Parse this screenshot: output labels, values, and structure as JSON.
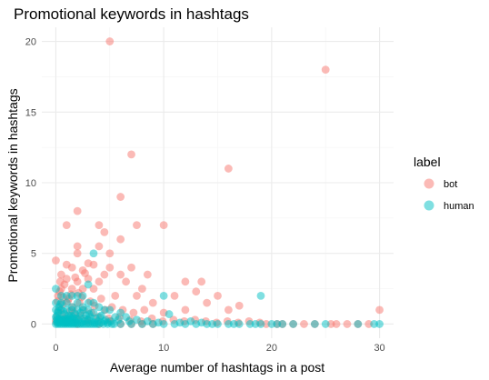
{
  "chart_data": {
    "type": "scatter",
    "title": "Promotional keywords in hashtags",
    "xlabel": "Average number of hashtags in a post",
    "ylabel": "Promotional keywords in hashtags",
    "xlim": [
      -1.3,
      31.3
    ],
    "ylim": [
      -1.0,
      21.0
    ],
    "x_ticks": [
      0,
      10,
      20,
      30
    ],
    "y_ticks": [
      0,
      5,
      10,
      15,
      20
    ],
    "legend": {
      "title": "label",
      "position": "right",
      "entries": [
        {
          "name": "bot",
          "color": "#f8766d"
        },
        {
          "name": "human",
          "color": "#00bfc4"
        }
      ]
    },
    "series": [
      {
        "name": "bot",
        "color": "#f8766d",
        "points": [
          [
            5,
            20
          ],
          [
            25,
            18
          ],
          [
            7,
            12
          ],
          [
            16,
            11
          ],
          [
            6,
            9
          ],
          [
            2,
            8
          ],
          [
            1,
            7
          ],
          [
            4,
            7
          ],
          [
            7.5,
            7
          ],
          [
            10,
            7
          ],
          [
            4.5,
            6.5
          ],
          [
            6,
            6
          ],
          [
            2,
            5.5
          ],
          [
            4,
            5.5
          ],
          [
            2,
            5
          ],
          [
            5,
            5
          ],
          [
            0,
            4.5
          ],
          [
            1,
            4.2
          ],
          [
            3,
            4.3
          ],
          [
            1.5,
            4
          ],
          [
            2.5,
            3.8
          ],
          [
            3.5,
            4.2
          ],
          [
            6,
            3.5
          ],
          [
            8.5,
            3.5
          ],
          [
            0.5,
            3.5
          ],
          [
            1,
            3.2
          ],
          [
            2,
            3
          ],
          [
            3,
            3.2
          ],
          [
            4,
            3
          ],
          [
            5,
            4
          ],
          [
            6.5,
            3
          ],
          [
            7,
            4
          ],
          [
            4.5,
            3.5
          ],
          [
            2.5,
            2.5
          ],
          [
            1.5,
            2.5
          ],
          [
            0.5,
            2.5
          ],
          [
            3.5,
            2.5
          ],
          [
            5.5,
            2
          ],
          [
            0.8,
            2.8
          ],
          [
            12,
            3
          ],
          [
            13.5,
            3
          ],
          [
            13,
            2.3
          ],
          [
            15,
            2
          ],
          [
            11,
            2
          ],
          [
            8,
            2.5
          ],
          [
            7.5,
            2
          ],
          [
            9,
            1.5
          ],
          [
            12,
            1
          ],
          [
            14,
            1.5
          ],
          [
            16,
            1
          ],
          [
            17,
            1.3
          ],
          [
            10,
            0.8
          ],
          [
            0.2,
            2
          ],
          [
            1.2,
            1.8
          ],
          [
            2.2,
            1.5
          ],
          [
            3.2,
            1.6
          ],
          [
            4.2,
            1.8
          ],
          [
            5.2,
            1.2
          ],
          [
            0.6,
            1.4
          ],
          [
            1.6,
            1.2
          ],
          [
            2.6,
            1
          ],
          [
            3.6,
            1.3
          ],
          [
            4.6,
            1
          ],
          [
            0.3,
            1
          ],
          [
            1.3,
            0.9
          ],
          [
            2.3,
            0.6
          ],
          [
            3.3,
            0.8
          ],
          [
            6.2,
            1
          ],
          [
            7.2,
            0.8
          ],
          [
            8.2,
            1
          ],
          [
            0.1,
            0.5
          ],
          [
            0.9,
            0.4
          ],
          [
            1.9,
            0.4
          ],
          [
            2.9,
            0.3
          ],
          [
            3.9,
            0.5
          ],
          [
            4.9,
            0.4
          ],
          [
            5.9,
            0.5
          ],
          [
            6.9,
            0.3
          ],
          [
            7.9,
            0.2
          ],
          [
            8.9,
            0.4
          ],
          [
            9.9,
            0.2
          ],
          [
            10.9,
            0.3
          ],
          [
            11.9,
            0.2
          ],
          [
            12.9,
            0.3
          ],
          [
            13.9,
            0.2
          ],
          [
            14.9,
            0.1
          ],
          [
            15.9,
            0.2
          ],
          [
            16.9,
            0.1
          ],
          [
            17.9,
            0.2
          ],
          [
            18.9,
            0.1
          ],
          [
            21,
            0
          ],
          [
            22,
            0
          ],
          [
            23,
            0
          ],
          [
            24,
            0
          ],
          [
            26,
            0
          ],
          [
            27,
            0
          ],
          [
            28,
            0
          ],
          [
            29,
            0
          ],
          [
            30,
            1
          ],
          [
            19.5,
            0
          ],
          [
            20.5,
            0
          ],
          [
            25.5,
            0
          ],
          [
            0,
            0.2
          ],
          [
            1,
            0.1
          ],
          [
            2,
            0
          ],
          [
            3,
            0.1
          ],
          [
            4,
            0
          ],
          [
            5,
            0.2
          ],
          [
            6,
            0
          ],
          [
            7,
            0
          ],
          [
            8,
            0
          ],
          [
            9,
            0
          ],
          [
            0.4,
            3
          ],
          [
            1.8,
            3.3
          ],
          [
            2.7,
            3.6
          ],
          [
            0.7,
            1.9
          ],
          [
            1.4,
            2.1
          ],
          [
            2.1,
            2.2
          ],
          [
            0.15,
            1.6
          ],
          [
            0.35,
            2.3
          ],
          [
            1.1,
            1.6
          ],
          [
            1.7,
            0.8
          ],
          [
            0.55,
            0.7
          ],
          [
            2.4,
            1.9
          ]
        ]
      },
      {
        "name": "human",
        "color": "#00bfc4",
        "points": [
          [
            3.5,
            5
          ],
          [
            10,
            2
          ],
          [
            19,
            2
          ],
          [
            0,
            2.5
          ],
          [
            0.5,
            2
          ],
          [
            1,
            2
          ],
          [
            1.5,
            2
          ],
          [
            2,
            2
          ],
          [
            3,
            2.8
          ],
          [
            2.5,
            2
          ],
          [
            0,
            1.5
          ],
          [
            0.5,
            1.5
          ],
          [
            1,
            1.5
          ],
          [
            2,
            1.5
          ],
          [
            3,
            1.5
          ],
          [
            1.5,
            1.2
          ],
          [
            2.5,
            1.2
          ],
          [
            3.5,
            1.5
          ],
          [
            4,
            1.2
          ],
          [
            4.5,
            1
          ],
          [
            0,
            1
          ],
          [
            0.5,
            1
          ],
          [
            1,
            1
          ],
          [
            1.5,
            1
          ],
          [
            2,
            1
          ],
          [
            2.5,
            1
          ],
          [
            3,
            1
          ],
          [
            3.5,
            0.8
          ],
          [
            5,
            1
          ],
          [
            6,
            0.8
          ],
          [
            0.2,
            0.8
          ],
          [
            0.8,
            0.7
          ],
          [
            1.2,
            0.6
          ],
          [
            1.8,
            0.7
          ],
          [
            2.2,
            0.5
          ],
          [
            2.8,
            0.6
          ],
          [
            3.2,
            0.5
          ],
          [
            4.2,
            0.6
          ],
          [
            5.5,
            0.5
          ],
          [
            6.5,
            0.5
          ],
          [
            7.5,
            0.3
          ],
          [
            8.5,
            0.2
          ],
          [
            10.5,
            0.7
          ],
          [
            0,
            0.5
          ],
          [
            0.3,
            0.4
          ],
          [
            0.6,
            0.3
          ],
          [
            0.9,
            0.2
          ],
          [
            1.2,
            0.3
          ],
          [
            1.5,
            0.4
          ],
          [
            1.8,
            0.2
          ],
          [
            2.1,
            0.3
          ],
          [
            2.4,
            0.1
          ],
          [
            2.7,
            0.2
          ],
          [
            3,
            0.3
          ],
          [
            3.3,
            0.2
          ],
          [
            3.6,
            0.1
          ],
          [
            3.9,
            0.2
          ],
          [
            4.2,
            0.1
          ],
          [
            4.5,
            0.2
          ],
          [
            4.8,
            0.1
          ],
          [
            5.1,
            0.2
          ],
          [
            5.4,
            0
          ],
          [
            6,
            0
          ],
          [
            7,
            0
          ],
          [
            8,
            0
          ],
          [
            9,
            0
          ],
          [
            10,
            0
          ],
          [
            11,
            0
          ],
          [
            12,
            0
          ],
          [
            13,
            0
          ],
          [
            14,
            0
          ],
          [
            15,
            0
          ],
          [
            16,
            0
          ],
          [
            17,
            0
          ],
          [
            18,
            0
          ],
          [
            19,
            0
          ],
          [
            20,
            0
          ],
          [
            21,
            0
          ],
          [
            22,
            0
          ],
          [
            24,
            0
          ],
          [
            25,
            0
          ],
          [
            28,
            0
          ],
          [
            29.5,
            0
          ],
          [
            30,
            0
          ],
          [
            0,
            0
          ],
          [
            0.1,
            0.1
          ],
          [
            0.2,
            0
          ],
          [
            0.3,
            0.1
          ],
          [
            0.4,
            0
          ],
          [
            0.5,
            0.2
          ],
          [
            0.6,
            0
          ],
          [
            0.7,
            0.1
          ],
          [
            0.8,
            0
          ],
          [
            0.9,
            0.1
          ],
          [
            1,
            0
          ],
          [
            1.1,
            0.1
          ],
          [
            1.2,
            0
          ],
          [
            1.3,
            0.1
          ],
          [
            1.4,
            0
          ],
          [
            1.5,
            0.1
          ],
          [
            1.6,
            0
          ],
          [
            1.7,
            0.1
          ],
          [
            1.8,
            0
          ],
          [
            1.9,
            0.1
          ],
          [
            2,
            0
          ],
          [
            2.2,
            0
          ],
          [
            2.4,
            0
          ],
          [
            2.6,
            0
          ],
          [
            2.8,
            0
          ],
          [
            3,
            0
          ],
          [
            3.2,
            0
          ],
          [
            3.4,
            0
          ],
          [
            3.6,
            0
          ],
          [
            3.8,
            0
          ],
          [
            4,
            0
          ],
          [
            4.4,
            0
          ],
          [
            4.8,
            0
          ],
          [
            5.2,
            0
          ],
          [
            0.05,
            0.3
          ],
          [
            0.15,
            0.2
          ],
          [
            0.25,
            0.35
          ],
          [
            0.35,
            0.25
          ],
          [
            0.45,
            0.15
          ],
          [
            0.55,
            0.35
          ],
          [
            0.65,
            0.25
          ],
          [
            0.75,
            0.15
          ],
          [
            0.85,
            0.35
          ],
          [
            0.95,
            0.25
          ],
          [
            1.05,
            0.4
          ],
          [
            1.15,
            0.2
          ],
          [
            1.25,
            0.5
          ],
          [
            1.35,
            0.3
          ],
          [
            1.45,
            0.6
          ],
          [
            0.1,
            0.6
          ],
          [
            0.2,
            0.9
          ],
          [
            0.3,
            1.2
          ],
          [
            0.4,
            1.4
          ],
          [
            0.7,
            0.9
          ],
          [
            1.6,
            0.5
          ],
          [
            1.9,
            0.4
          ],
          [
            2.3,
            0.8
          ],
          [
            2.6,
            0.4
          ],
          [
            3.1,
            0.7
          ],
          [
            3.7,
            0.4
          ],
          [
            4.1,
            0.5
          ],
          [
            4.6,
            0.3
          ],
          [
            5.8,
            0.3
          ],
          [
            6.8,
            0.2
          ],
          [
            9.5,
            0.1
          ],
          [
            11.5,
            0.1
          ],
          [
            13.5,
            0.1
          ],
          [
            12.5,
            0.2
          ],
          [
            14.5,
            0
          ],
          [
            16.5,
            0
          ],
          [
            18.5,
            0
          ],
          [
            20.5,
            0
          ]
        ]
      }
    ]
  }
}
